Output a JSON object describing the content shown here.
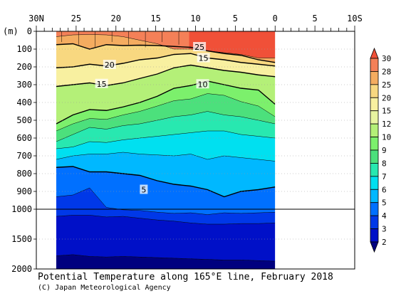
{
  "chart_data": {
    "type": "heatmap",
    "title": "Potential Temperature along 165°E line, February 2018",
    "credit": "(C) Japan Meteorological Agency",
    "y_unit": "(m)",
    "x_ticks": [
      {
        "lat": 30,
        "label": "30N"
      },
      {
        "lat": 25,
        "label": "25"
      },
      {
        "lat": 20,
        "label": "20"
      },
      {
        "lat": 15,
        "label": "15"
      },
      {
        "lat": 10,
        "label": "10"
      },
      {
        "lat": 5,
        "label": "5"
      },
      {
        "lat": 0,
        "label": "0"
      },
      {
        "lat": -5,
        "label": "5"
      },
      {
        "lat": -10,
        "label": "10S"
      }
    ],
    "x_range": [
      30,
      -10
    ],
    "data_x_range": [
      27.5,
      0
    ],
    "y_ticks_upper": [
      {
        "depth": 0,
        "label": "0"
      },
      {
        "depth": 100,
        "label": "100"
      },
      {
        "depth": 200,
        "label": "200"
      },
      {
        "depth": 300,
        "label": "300"
      },
      {
        "depth": 400,
        "label": "400"
      },
      {
        "depth": 500,
        "label": "500"
      },
      {
        "depth": 600,
        "label": "600"
      },
      {
        "depth": 700,
        "label": "700"
      },
      {
        "depth": 800,
        "label": "800"
      },
      {
        "depth": 900,
        "label": "900"
      },
      {
        "depth": 1000,
        "label": "1000"
      }
    ],
    "y_ticks_lower": [
      {
        "depth": 1500,
        "label": "1500"
      },
      {
        "depth": 2000,
        "label": "2000"
      }
    ],
    "depth_break": 1000,
    "depth_max": 2000,
    "grid": true,
    "levels": [
      2,
      3,
      4,
      5,
      6,
      7,
      8,
      9,
      10,
      12,
      15,
      20,
      25,
      28,
      30
    ],
    "colorbar_labels": [
      "30",
      "28",
      "25",
      "20",
      "15",
      "12",
      "10",
      "9",
      "8",
      "7",
      "6",
      "5",
      "4",
      "3",
      "2"
    ],
    "colors": [
      "#00007f",
      "#0010c8",
      "#0038e8",
      "#0070ff",
      "#00b8ff",
      "#00e0f0",
      "#28e8b0",
      "#4ce07c",
      "#7cf06c",
      "#b4f078",
      "#e8f4a0",
      "#f8f0a0",
      "#f8d880",
      "#f4ac60",
      "#f48058",
      "#f05038"
    ],
    "temperature_isolines": [
      {
        "temp": 28,
        "depths": [
          30,
          20,
          18,
          20,
          30,
          50,
          70,
          100,
          100,
          110,
          120,
          130,
          150,
          150
        ]
      },
      {
        "temp": 25,
        "depths": [
          75,
          70,
          100,
          75,
          80,
          78,
          80,
          85,
          90,
          110,
          125,
          135,
          160,
          175
        ]
      },
      {
        "temp": 20,
        "depths": [
          205,
          200,
          185,
          195,
          180,
          160,
          150,
          130,
          125,
          150,
          160,
          175,
          185,
          195
        ]
      },
      {
        "temp": 15,
        "depths": [
          310,
          300,
          290,
          305,
          290,
          265,
          240,
          205,
          190,
          205,
          220,
          230,
          245,
          255
        ]
      },
      {
        "temp": 10,
        "depths": [
          520,
          470,
          440,
          445,
          425,
          400,
          365,
          320,
          305,
          280,
          300,
          320,
          330,
          410
        ]
      },
      {
        "temp": 9,
        "depths": [
          560,
          520,
          490,
          495,
          470,
          450,
          420,
          390,
          380,
          350,
          360,
          395,
          420,
          480
        ]
      },
      {
        "temp": 8,
        "depths": [
          620,
          580,
          540,
          550,
          530,
          520,
          500,
          480,
          470,
          450,
          470,
          480,
          500,
          520
        ]
      },
      {
        "temp": 7,
        "depths": [
          660,
          650,
          620,
          625,
          610,
          600,
          590,
          580,
          570,
          560,
          560,
          580,
          590,
          600
        ]
      },
      {
        "temp": 6,
        "depths": [
          720,
          700,
          690,
          690,
          680,
          690,
          695,
          700,
          690,
          720,
          700,
          710,
          720,
          730
        ]
      },
      {
        "temp": 5,
        "depths": [
          765,
          760,
          790,
          790,
          800,
          810,
          840,
          860,
          870,
          890,
          930,
          900,
          890,
          875
        ]
      },
      {
        "temp": 4,
        "depths": [
          930,
          920,
          880,
          990,
          1010,
          1020,
          1050,
          1070,
          1060,
          1090,
          1060,
          1070,
          1060,
          1050
        ]
      },
      {
        "temp": 3,
        "depths": [
          1120,
          1100,
          1100,
          1130,
          1120,
          1150,
          1180,
          1200,
          1230,
          1250,
          1250,
          1240,
          1240,
          1230
        ]
      },
      {
        "temp": 2,
        "depths": [
          1780,
          1760,
          1790,
          1800,
          1790,
          1800,
          1810,
          1820,
          1830,
          1840,
          1850,
          1850,
          1860,
          1870
        ]
      }
    ],
    "isoline_lats": [
      27.5,
      25.4,
      23.3,
      21.2,
      19.1,
      17.0,
      14.8,
      12.7,
      10.6,
      8.5,
      6.4,
      4.3,
      2.1,
      0
    ],
    "surface_patch_28": {
      "lat_start": 10.8,
      "depths_bottom": [
        100,
        110,
        120,
        130,
        150,
        150
      ]
    },
    "contour_labels": [
      {
        "text": "25",
        "lat": 9.5,
        "depth": 88
      },
      {
        "text": "20",
        "lat": 20.8,
        "depth": 188
      },
      {
        "text": "15",
        "lat": 9.0,
        "depth": 150
      },
      {
        "text": "15",
        "lat": 21.8,
        "depth": 295
      },
      {
        "text": "10",
        "lat": 9.1,
        "depth": 297
      },
      {
        "text": "5",
        "lat": 16.5,
        "depth": 890
      }
    ]
  }
}
